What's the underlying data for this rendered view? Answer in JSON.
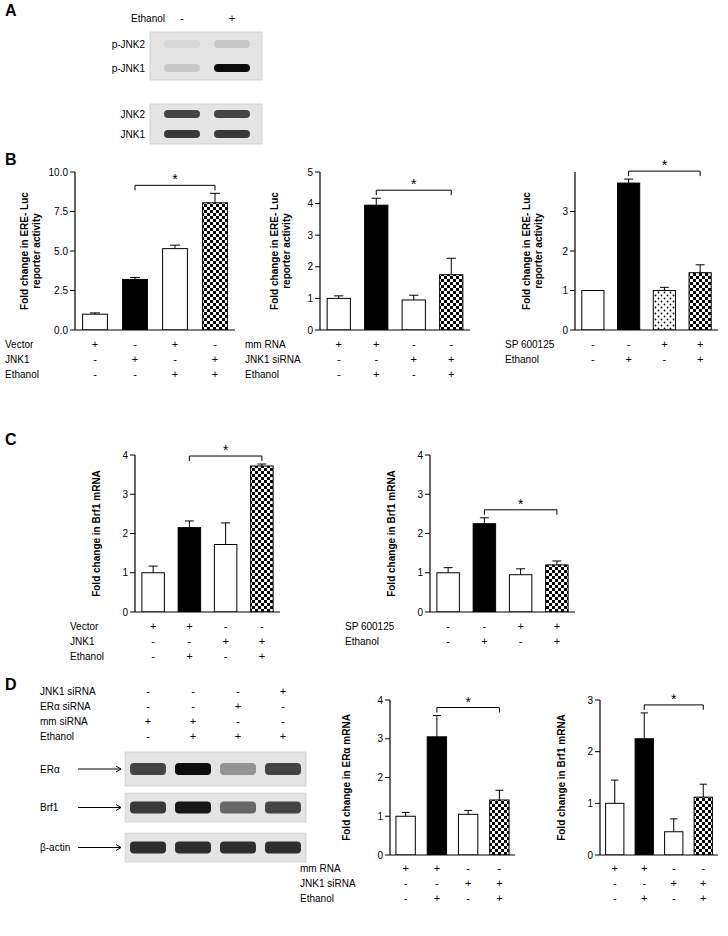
{
  "chart_data": [
    {
      "type": "bar",
      "y_label": "Fold change in ERE- Luc reporter activity",
      "categories": [
        null,
        null,
        null,
        null
      ],
      "values": [
        1.0,
        3.2,
        5.15,
        8.05
      ],
      "errors": [
        0.08,
        0.12,
        0.22,
        0.6
      ],
      "colors": [
        "#ffffff",
        "#000000",
        "#ffffff",
        "#000000"
      ],
      "ylim": [
        0,
        10
      ],
      "yticks": [
        {
          "value": 0,
          "label": "0.0"
        },
        2.5,
        {
          "value": 5,
          "label": "5.0"
        },
        7.5,
        {
          "value": 10,
          "label": "10.0"
        }
      ],
      "conditions": [
        {
          "name": "Vector",
          "signs": [
            "+",
            "-",
            "+",
            "-"
          ]
        },
        {
          "name": "JNK1",
          "signs": [
            "-",
            "+",
            "-",
            "+"
          ]
        },
        {
          "name": "Ethanol",
          "signs": [
            "-",
            "-",
            "+",
            "+"
          ]
        }
      ],
      "significance": [
        {
          "label": "*",
          "pair": [
            1,
            3
          ]
        }
      ]
    },
    {
      "type": "bar",
      "y_label": "Fold change in ERE- Luc reporter activity",
      "categories": [
        null,
        null,
        null,
        null
      ],
      "values": [
        1.0,
        3.95,
        0.95,
        1.75
      ],
      "errors": [
        0.08,
        0.22,
        0.15,
        0.52
      ],
      "colors": [
        "#ffffff",
        "#000000",
        "#ffffff",
        "#000000"
      ],
      "ylim": [
        0,
        5
      ],
      "yticks": [
        0,
        1,
        2,
        3,
        4,
        5
      ],
      "conditions": [
        {
          "name": "mm RNA",
          "signs": [
            "+",
            "+",
            "-",
            "-"
          ]
        },
        {
          "name": "JNK1 siRNA",
          "signs": [
            "-",
            "-",
            "+",
            "+"
          ]
        },
        {
          "name": "Ethanol",
          "signs": [
            "-",
            "+",
            "-",
            "+"
          ]
        }
      ],
      "significance": [
        {
          "label": "*",
          "pair": [
            1,
            3
          ]
        }
      ]
    },
    {
      "type": "bar",
      "y_label": "Fold change in ERE- Luc reporter activity",
      "categories": [
        null,
        null,
        null,
        null
      ],
      "values": [
        1.0,
        3.72,
        1.0,
        1.45
      ],
      "errors": [
        0.0,
        0.1,
        0.08,
        0.2
      ],
      "colors": [
        "#ffffff",
        "#000000",
        "#ffffff",
        "#000000"
      ],
      "ylim": [
        0,
        4
      ],
      "yticks": [
        0,
        1,
        2,
        3
      ],
      "conditions": [
        {
          "name": "SP 600125",
          "signs": [
            "-",
            "-",
            "+",
            "+"
          ]
        },
        {
          "name": "Ethanol",
          "signs": [
            "-",
            "+",
            "-",
            "+"
          ]
        }
      ],
      "significance": [
        {
          "label": "*",
          "pair": [
            1,
            3
          ]
        }
      ]
    },
    {
      "type": "bar",
      "y_label": "Fold change in Brf1 mRNA",
      "categories": [
        null,
        null,
        null,
        null
      ],
      "values": [
        1.0,
        2.15,
        1.72,
        3.72
      ],
      "errors": [
        0.17,
        0.17,
        0.55,
        0.05
      ],
      "colors": [
        "#ffffff",
        "#000000",
        "#ffffff",
        "#000000"
      ],
      "ylim": [
        0,
        4
      ],
      "yticks": [
        0,
        1,
        2,
        3,
        4
      ],
      "conditions": [
        {
          "name": "Vector",
          "signs": [
            "+",
            "+",
            "-",
            "-"
          ]
        },
        {
          "name": "JNK1",
          "signs": [
            "-",
            "-",
            "+",
            "+"
          ]
        },
        {
          "name": "Ethanol",
          "signs": [
            "-",
            "+",
            "-",
            "+"
          ]
        }
      ],
      "significance": [
        {
          "label": "*",
          "pair": [
            1,
            3
          ]
        }
      ]
    },
    {
      "type": "bar",
      "y_label": "Fold change in Brf1 mRNA",
      "categories": [
        null,
        null,
        null,
        null
      ],
      "values": [
        1.0,
        2.25,
        0.95,
        1.2
      ],
      "errors": [
        0.13,
        0.15,
        0.15,
        0.1
      ],
      "colors": [
        "#ffffff",
        "#000000",
        "#ffffff",
        "#000000"
      ],
      "ylim": [
        0,
        4
      ],
      "yticks": [
        0,
        1,
        2,
        3,
        4
      ],
      "conditions": [
        {
          "name": "SP 600125",
          "signs": [
            "-",
            "-",
            "+",
            "+"
          ]
        },
        {
          "name": "Ethanol",
          "signs": [
            "-",
            "+",
            "-",
            "+"
          ]
        }
      ],
      "significance": [
        {
          "label": "*",
          "pair": [
            1,
            3
          ]
        }
      ]
    },
    {
      "type": "bar",
      "y_label": "Fold change in ERα mRNA",
      "categories": [
        null,
        null,
        null,
        null
      ],
      "values": [
        1.0,
        3.05,
        1.05,
        1.42
      ],
      "errors": [
        0.1,
        0.55,
        0.1,
        0.25
      ],
      "colors": [
        "#ffffff",
        "#000000",
        "#ffffff",
        "#000000"
      ],
      "ylim": [
        0,
        4
      ],
      "yticks": [
        0,
        1,
        2,
        3,
        4
      ],
      "conditions": [
        {
          "name": "mm RNA",
          "signs": [
            "+",
            "+",
            "-",
            "-"
          ]
        },
        {
          "name": "JNK1 siRNA",
          "signs": [
            "-",
            "-",
            "+",
            "+"
          ]
        },
        {
          "name": "Ethanol",
          "signs": [
            "-",
            "+",
            "-",
            "+"
          ]
        }
      ],
      "significance": [
        {
          "label": "*",
          "pair": [
            1,
            3
          ]
        }
      ]
    },
    {
      "type": "bar",
      "y_label": "Fold change in Brf1 mRNA",
      "categories": [
        null,
        null,
        null,
        null
      ],
      "values": [
        1.0,
        2.25,
        0.45,
        1.12
      ],
      "errors": [
        0.45,
        0.5,
        0.25,
        0.25
      ],
      "colors": [
        "#ffffff",
        "#000000",
        "#ffffff",
        "#000000"
      ],
      "ylim": [
        0,
        3
      ],
      "yticks": [
        0,
        1,
        2,
        3
      ],
      "conditions": [
        {
          "signs": [
            "+",
            "+",
            "-",
            "-"
          ]
        },
        {
          "signs": [
            "-",
            "-",
            "+",
            "+"
          ]
        },
        {
          "signs": [
            "-",
            "+",
            "-",
            "+"
          ]
        }
      ],
      "significance": [
        {
          "label": "*",
          "pair": [
            1,
            3
          ]
        }
      ]
    }
  ],
  "figure": {
    "panel_labels": [
      "A",
      "B",
      "C",
      "D"
    ],
    "blots": [
      {
        "header_rows": [
          {
            "label": "Ethanol",
            "signs": [
              "-",
              "+"
            ]
          }
        ],
        "groups": [
          {
            "bands": [
              "p-JNK2",
              "p-JNK1"
            ],
            "intensities": [
              [
                0.05,
                0.12
              ],
              [
                0.12,
                0.95
              ]
            ]
          },
          {
            "bands": [
              "JNK2",
              "JNK1"
            ],
            "intensities": [
              [
                0.7,
                0.7
              ],
              [
                0.75,
                0.75
              ]
            ]
          }
        ]
      },
      {
        "header_rows": [
          {
            "label": "JNK1 siRNA",
            "signs": [
              "-",
              "-",
              "-",
              "+"
            ]
          },
          {
            "label": "ERα siRNA",
            "signs": [
              "-",
              "-",
              "+",
              "-"
            ]
          },
          {
            "label": "mm siRNA",
            "signs": [
              "+",
              "+",
              "-",
              "-"
            ]
          },
          {
            "label": "Ethanol",
            "signs": [
              "-",
              "+",
              "+",
              "+"
            ]
          }
        ],
        "groups": [
          {
            "bands": [
              "ERα"
            ],
            "intensities": [
              [
                0.7,
                0.95,
                0.35,
                0.7
              ]
            ]
          },
          {
            "bands": [
              "Brf1"
            ],
            "intensities": [
              [
                0.75,
                0.9,
                0.55,
                0.7
              ]
            ]
          },
          {
            "bands": [
              "β-actin"
            ],
            "intensities": [
              [
                0.8,
                0.8,
                0.8,
                0.8
              ]
            ]
          }
        ]
      }
    ]
  }
}
